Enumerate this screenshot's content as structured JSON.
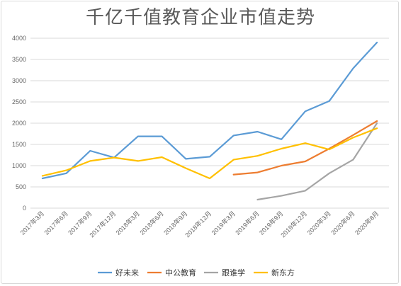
{
  "chart_data": {
    "type": "line",
    "title": "千亿千值教育企业市值走势",
    "xlabel": "",
    "ylabel": "",
    "ylim": [
      0,
      4000
    ],
    "yticks": [
      0,
      500,
      1000,
      1500,
      2000,
      2500,
      3000,
      3500,
      4000
    ],
    "grid": true,
    "legend_position": "bottom",
    "categories": [
      "2017年3月",
      "2017年6月",
      "2017年9月",
      "2017年12月",
      "2018年3月",
      "2018年6月",
      "2018年9月",
      "2018年12月",
      "2019年3月",
      "2019年6月",
      "2019年9月",
      "2019年12月",
      "2020年3月",
      "2020年6月",
      "2020年8月"
    ],
    "series": [
      {
        "name": "好未来",
        "color": "#5b9bd5",
        "values": [
          700,
          820,
          1350,
          1190,
          1690,
          1690,
          1160,
          1210,
          1710,
          1800,
          1620,
          2280,
          2520,
          3290,
          3900
        ]
      },
      {
        "name": "中公教育",
        "color": "#ed7d31",
        "values": [
          null,
          null,
          null,
          null,
          null,
          null,
          null,
          null,
          790,
          840,
          1000,
          1100,
          1400,
          1720,
          2050
        ]
      },
      {
        "name": "跟谁学",
        "color": "#a5a5a5",
        "values": [
          null,
          null,
          null,
          null,
          null,
          null,
          null,
          null,
          null,
          200,
          290,
          410,
          820,
          1140,
          2000
        ]
      },
      {
        "name": "新东方",
        "color": "#ffc000",
        "values": [
          760,
          890,
          1110,
          1190,
          1110,
          1200,
          940,
          700,
          1140,
          1230,
          1400,
          1530,
          1380,
          1660,
          1880
        ]
      }
    ]
  }
}
